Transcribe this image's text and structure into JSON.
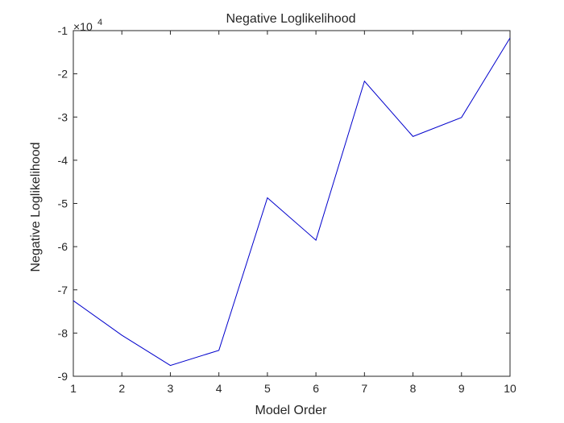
{
  "chart_data": {
    "type": "line",
    "title": "Negative Loglikelihood",
    "xlabel": "Model Order",
    "ylabel": "Negative Loglikelihood",
    "exponent_label": "×10",
    "exponent_power": "4",
    "xlim": [
      1,
      10
    ],
    "ylim": [
      -9,
      -1
    ],
    "xticks": [
      1,
      2,
      3,
      4,
      5,
      6,
      7,
      8,
      9,
      10
    ],
    "yticks": [
      -9,
      -8,
      -7,
      -6,
      -5,
      -4,
      -3,
      -2,
      -1
    ],
    "grid": false,
    "series": [
      {
        "color": "#0000cc",
        "x": [
          1,
          2,
          3,
          4,
          5,
          6,
          7,
          8,
          9,
          10
        ],
        "y": [
          -7.25,
          -8.05,
          -8.75,
          -8.4,
          -4.87,
          -5.85,
          -2.17,
          -3.45,
          -3.01,
          -1.17
        ]
      }
    ]
  }
}
